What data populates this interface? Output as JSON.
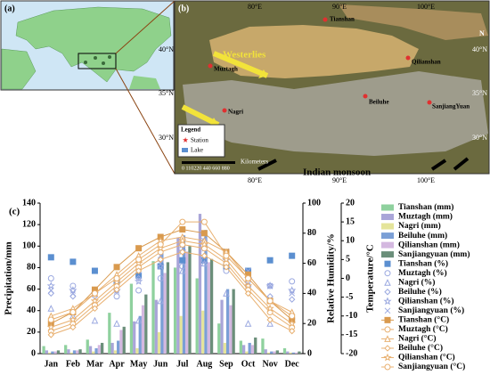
{
  "maps": {
    "a": {
      "label": "(a)"
    },
    "b": {
      "label": "(b)",
      "lon_labels": [
        "80°E",
        "90°E",
        "100°E"
      ],
      "lat_labels": [
        "40°N",
        "35°N",
        "30°N"
      ],
      "westerlies": "Westerlies",
      "monsoon": "Indian monsoon",
      "north": "N",
      "stations": [
        "Tianshan",
        "Muztagh",
        "Nagri",
        "Beiluhe",
        "Qilianshan",
        "SanjiangYuan"
      ],
      "legend_title": "Legend",
      "legend_station": "Station",
      "legend_lake": "Lake",
      "scale_labels": "0 110220   440   660   880",
      "scale_unit": "Kilometers"
    }
  },
  "chart_data": {
    "type": "combo",
    "label": "(c)",
    "categories": [
      "Jan",
      "Feb",
      "Mar",
      "Apr",
      "May",
      "Jun",
      "Jul",
      "Aug",
      "Sep",
      "Oct",
      "Nov",
      "Dec"
    ],
    "ylabel": "Precipitation/mm",
    "ylim": [
      0,
      140
    ],
    "yticks": [
      0,
      20,
      40,
      60,
      80,
      100,
      120,
      140
    ],
    "y2label": "Relative Humidity/%",
    "y2lim": [
      0,
      100
    ],
    "y2ticks": [
      0,
      20,
      40,
      60,
      80,
      100
    ],
    "y3label": "Temperature/°C",
    "y3lim": [
      -20,
      20
    ],
    "y3ticks": [
      -20,
      -15,
      -10,
      -5,
      0,
      5,
      10,
      15,
      20
    ],
    "series": [
      {
        "name": "Tianshan (mm)",
        "type": "bar",
        "axis": "y",
        "color": "#8fd19e",
        "values": [
          7,
          8,
          13,
          38,
          65,
          86,
          80,
          70,
          28,
          12,
          14,
          5
        ]
      },
      {
        "name": "Muztagh (mm)",
        "type": "bar",
        "axis": "y",
        "color": "#a9a5d8",
        "values": [
          3,
          4,
          7,
          10,
          30,
          50,
          108,
          130,
          50,
          8,
          4,
          2
        ]
      },
      {
        "name": "Nagri (mm)",
        "type": "bar",
        "axis": "y",
        "color": "#e4e49a",
        "values": [
          1,
          1,
          2,
          3,
          5,
          20,
          35,
          40,
          10,
          2,
          1,
          1
        ]
      },
      {
        "name": "Beiluhe (mm)",
        "type": "bar",
        "axis": "y",
        "color": "#7b9fd6",
        "values": [
          2,
          3,
          5,
          12,
          35,
          95,
          110,
          115,
          60,
          10,
          2,
          1
        ]
      },
      {
        "name": "Qilianshan (mm)",
        "type": "bar",
        "axis": "y",
        "color": "#d4b8e0",
        "values": [
          2,
          3,
          8,
          22,
          45,
          75,
          95,
          85,
          45,
          8,
          2,
          1
        ]
      },
      {
        "name": "Sanjiangyuan (mm)",
        "type": "bar",
        "axis": "y",
        "color": "#6b8f7a",
        "values": [
          3,
          4,
          10,
          25,
          55,
          85,
          100,
          88,
          60,
          15,
          3,
          2
        ]
      },
      {
        "name": "Tianshan (%)",
        "type": "scatter",
        "axis": "y2",
        "marker": "square",
        "color": "#5b8fd0",
        "values": [
          64,
          61,
          55,
          48,
          52,
          58,
          62,
          62,
          58,
          55,
          62,
          65
        ]
      },
      {
        "name": "Muztagh (%)",
        "type": "scatter",
        "axis": "y2",
        "marker": "circle",
        "color": "#9aa8e0",
        "values": [
          50,
          45,
          40,
          38,
          42,
          50,
          58,
          62,
          55,
          45,
          45,
          48
        ]
      },
      {
        "name": "Nagri (%)",
        "type": "scatter",
        "axis": "y2",
        "marker": "triangle",
        "color": "#9aa8e0",
        "values": [
          30,
          25,
          22,
          20,
          22,
          35,
          55,
          60,
          40,
          20,
          20,
          25
        ]
      },
      {
        "name": "Beiluhe (%)",
        "type": "scatter",
        "axis": "y2",
        "marker": "diamond",
        "color": "#9aa8e0",
        "values": [
          40,
          38,
          38,
          42,
          50,
          62,
          72,
          75,
          65,
          48,
          38,
          36
        ]
      },
      {
        "name": "Qilianshan (%)",
        "type": "scatter",
        "axis": "y2",
        "marker": "star",
        "color": "#9aa8e0",
        "values": [
          45,
          42,
          40,
          42,
          48,
          58,
          68,
          70,
          62,
          50,
          45,
          42
        ]
      },
      {
        "name": "Sanjiangyuan (%)",
        "type": "scatter",
        "axis": "y2",
        "marker": "cross",
        "color": "#9aa8e0",
        "values": [
          42,
          40,
          42,
          48,
          55,
          65,
          72,
          75,
          68,
          55,
          45,
          40
        ]
      },
      {
        "name": "Tianshan (°C)",
        "type": "line",
        "axis": "y3",
        "marker": "square",
        "color": "#d99a4e",
        "values": [
          -12,
          -9,
          -3,
          3,
          8,
          11,
          13,
          12,
          7,
          1,
          -6,
          -11
        ]
      },
      {
        "name": "Muztagh (°C)",
        "type": "line",
        "axis": "y3",
        "marker": "circle",
        "color": "#e8b070",
        "values": [
          -14,
          -12,
          -7,
          -2,
          3,
          7,
          9,
          8,
          4,
          -3,
          -9,
          -13
        ]
      },
      {
        "name": "Nagri (°C)",
        "type": "line",
        "axis": "y3",
        "marker": "triangle",
        "color": "#e8b070",
        "values": [
          -10,
          -8,
          -4,
          1,
          6,
          10,
          11,
          10,
          7,
          0,
          -6,
          -9
        ]
      },
      {
        "name": "Beiluhe (°C)",
        "type": "line",
        "axis": "y3",
        "marker": "diamond",
        "color": "#e8b070",
        "values": [
          -15,
          -13,
          -8,
          -3,
          2,
          5,
          7,
          6,
          3,
          -4,
          -11,
          -14
        ]
      },
      {
        "name": "Qilianshan (°C)",
        "type": "line",
        "axis": "y3",
        "marker": "star",
        "color": "#e8b070",
        "values": [
          -13,
          -11,
          -6,
          -1,
          4,
          8,
          10,
          9,
          5,
          -2,
          -8,
          -12
        ]
      },
      {
        "name": "Sanjiangyuan (°C)",
        "type": "line",
        "axis": "y3",
        "marker": "circle",
        "color": "#e8b070",
        "values": [
          -11,
          -9,
          -4,
          0,
          5,
          9,
          15,
          15,
          6,
          0,
          -6,
          -10
        ]
      }
    ]
  }
}
